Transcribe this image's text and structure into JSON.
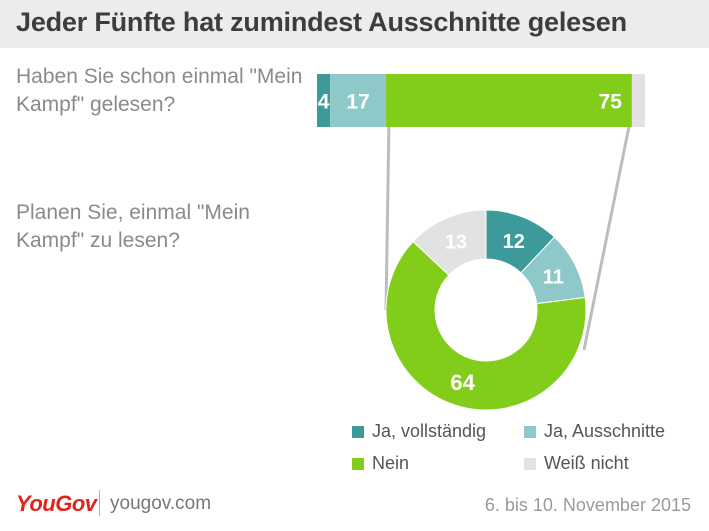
{
  "title": "Jeder Fünfte hat zumindest Ausschnitte gelesen",
  "chart_data": [
    {
      "type": "bar",
      "orientation": "horizontal-stacked",
      "question": "Haben Sie schon einmal \"Mein Kampf\" gelesen?",
      "categories": [
        "Ja, vollständig",
        "Ja, Ausschnitte",
        "Nein",
        "Weiß nicht"
      ],
      "values": [
        4,
        17,
        75,
        4
      ],
      "labels": [
        "4",
        "17",
        "75",
        ""
      ],
      "colors": [
        "#3d9a9b",
        "#8ec8c9",
        "#82cc1a",
        "#e2e2e2"
      ]
    },
    {
      "type": "pie",
      "variant": "donut",
      "question": "Planen Sie, einmal \"Mein Kampf\" zu lesen?",
      "categories": [
        "Ja, vollständig",
        "Ja, Ausschnitte",
        "Nein",
        "Weiß nicht"
      ],
      "values": [
        12,
        11,
        64,
        13
      ],
      "labels": [
        "12",
        "11",
        "64",
        "13"
      ],
      "colors": [
        "#3d9a9b",
        "#8ec8c9",
        "#82cc1a",
        "#e2e2e2"
      ]
    }
  ],
  "legend": {
    "items": [
      {
        "label": "Ja, vollständig",
        "color": "#3d9a9b"
      },
      {
        "label": "Ja, Ausschnitte",
        "color": "#8ec8c9"
      },
      {
        "label": "Nein",
        "color": "#82cc1a"
      },
      {
        "label": "Weiß nicht",
        "color": "#e2e2e2"
      }
    ]
  },
  "footer": {
    "logo": "YouGov",
    "url": "yougov.com",
    "date": "6. bis 10. November 2015"
  }
}
